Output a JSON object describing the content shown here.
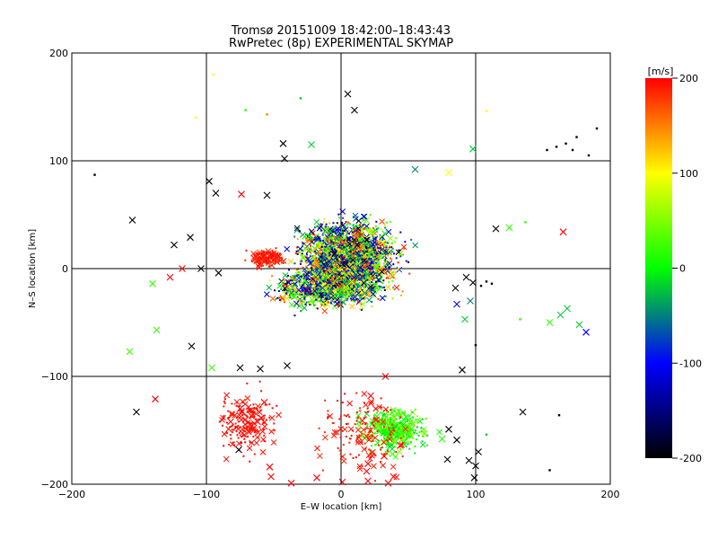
{
  "chart_data": {
    "type": "scatter",
    "title": "Tromsø 20151009 18:42:00–18:43:43",
    "subtitle": "RwPretec (8p) EXPERIMENTAL SKYMAP",
    "xlabel": "E–W location [km]",
    "ylabel": "N–S location [km]",
    "xlim": [
      -200,
      200
    ],
    "ylim": [
      -200,
      200
    ],
    "xticks": [
      -200,
      -100,
      0,
      100,
      200
    ],
    "yticks": [
      -200,
      -100,
      0,
      100,
      200
    ],
    "grid": "lines at -100, 0 and 100 on both axes",
    "colorbar": {
      "label": "[m/s]",
      "min": -200,
      "max": 200,
      "ticks": [
        200,
        100,
        0,
        -100,
        -200
      ],
      "colormap": [
        "#000000",
        "#0000ff",
        "#00ff00",
        "#ffff00",
        "#ff0000"
      ]
    },
    "markers": {
      "small": "dot",
      "large": "x"
    },
    "points": [
      {
        "x": -183,
        "y": 87,
        "v": -200,
        "m": "d"
      },
      {
        "x": -155,
        "y": 45,
        "v": -200,
        "m": "x"
      },
      {
        "x": -124,
        "y": 22,
        "v": -200,
        "m": "x"
      },
      {
        "x": -112,
        "y": 29,
        "v": -200,
        "m": "x"
      },
      {
        "x": -98,
        "y": 81,
        "v": -200,
        "m": "x"
      },
      {
        "x": -93,
        "y": 70,
        "v": -200,
        "m": "x"
      },
      {
        "x": -74,
        "y": 69,
        "v": 200,
        "m": "x"
      },
      {
        "x": -55,
        "y": 68,
        "v": -200,
        "m": "x"
      },
      {
        "x": -42,
        "y": 102,
        "v": -200,
        "m": "x"
      },
      {
        "x": -43,
        "y": 116,
        "v": -200,
        "m": "x"
      },
      {
        "x": -22,
        "y": 115,
        "v": -20,
        "m": "x"
      },
      {
        "x": 5,
        "y": 162,
        "v": -200,
        "m": "x"
      },
      {
        "x": 10,
        "y": 147,
        "v": -200,
        "m": "x"
      },
      {
        "x": 98,
        "y": 111,
        "v": -20,
        "m": "x"
      },
      {
        "x": 153,
        "y": 110,
        "v": -200,
        "m": "d"
      },
      {
        "x": 160,
        "y": 113,
        "v": -200,
        "m": "d"
      },
      {
        "x": 167,
        "y": 116,
        "v": -200,
        "m": "d"
      },
      {
        "x": 172,
        "y": 110,
        "v": -200,
        "m": "d"
      },
      {
        "x": 175,
        "y": 122,
        "v": -200,
        "m": "d"
      },
      {
        "x": 190,
        "y": 130,
        "v": -200,
        "m": "d"
      },
      {
        "x": 184,
        "y": 105,
        "v": -200,
        "m": "d"
      },
      {
        "x": -108,
        "y": 140,
        "v": 100,
        "m": "d"
      },
      {
        "x": -95,
        "y": 180,
        "v": 100,
        "m": "d"
      },
      {
        "x": -71,
        "y": 147,
        "v": 10,
        "m": "d"
      },
      {
        "x": -55,
        "y": 143,
        "v": 150,
        "m": "d"
      },
      {
        "x": -30,
        "y": 158,
        "v": -20,
        "m": "d"
      },
      {
        "x": 55,
        "y": 92,
        "v": -50,
        "m": "x"
      },
      {
        "x": 80,
        "y": 89,
        "v": 100,
        "m": "x"
      },
      {
        "x": 108,
        "y": 146,
        "v": 100,
        "m": "d"
      },
      {
        "x": 125,
        "y": 38,
        "v": 20,
        "m": "x"
      },
      {
        "x": 115,
        "y": 37,
        "v": -200,
        "m": "x"
      },
      {
        "x": 137,
        "y": 43,
        "v": 20,
        "m": "d"
      },
      {
        "x": 165,
        "y": 34,
        "v": 200,
        "m": "x"
      },
      {
        "x": -104,
        "y": 0,
        "v": -200,
        "m": "x"
      },
      {
        "x": -118,
        "y": 0,
        "v": 200,
        "m": "x"
      },
      {
        "x": -127,
        "y": -8,
        "v": 200,
        "m": "x"
      },
      {
        "x": -140,
        "y": -14,
        "v": 20,
        "m": "x"
      },
      {
        "x": -91,
        "y": -4,
        "v": -200,
        "m": "x"
      },
      {
        "x": -137,
        "y": -57,
        "v": 20,
        "m": "x"
      },
      {
        "x": -157,
        "y": -77,
        "v": 20,
        "m": "x"
      },
      {
        "x": -111,
        "y": -72,
        "v": -200,
        "m": "x"
      },
      {
        "x": -96,
        "y": -92,
        "v": 20,
        "m": "x"
      },
      {
        "x": -75,
        "y": -92,
        "v": -200,
        "m": "x"
      },
      {
        "x": -60,
        "y": -93,
        "v": -200,
        "m": "x"
      },
      {
        "x": -40,
        "y": -90,
        "v": -200,
        "m": "x"
      },
      {
        "x": -138,
        "y": -121,
        "v": 200,
        "m": "x"
      },
      {
        "x": -152,
        "y": -133,
        "v": -200,
        "m": "x"
      },
      {
        "x": 85,
        "y": -18,
        "v": -200,
        "m": "x"
      },
      {
        "x": 93,
        "y": -8,
        "v": -200,
        "m": "x"
      },
      {
        "x": 98,
        "y": -13,
        "v": -200,
        "m": "x"
      },
      {
        "x": 104,
        "y": -16,
        "v": -200,
        "m": "d"
      },
      {
        "x": 108,
        "y": -12,
        "v": -200,
        "m": "d"
      },
      {
        "x": 112,
        "y": -14,
        "v": -200,
        "m": "d"
      },
      {
        "x": 86,
        "y": -33,
        "v": -100,
        "m": "x"
      },
      {
        "x": 96,
        "y": -30,
        "v": -50,
        "m": "x"
      },
      {
        "x": 92,
        "y": -47,
        "v": -20,
        "m": "x"
      },
      {
        "x": 155,
        "y": -50,
        "v": 20,
        "m": "x"
      },
      {
        "x": 163,
        "y": -43,
        "v": -20,
        "m": "x"
      },
      {
        "x": 168,
        "y": -37,
        "v": -20,
        "m": "x"
      },
      {
        "x": 177,
        "y": -52,
        "v": -20,
        "m": "x"
      },
      {
        "x": 182,
        "y": -59,
        "v": -100,
        "m": "x"
      },
      {
        "x": 133,
        "y": -47,
        "v": 20,
        "m": "d"
      },
      {
        "x": 90,
        "y": -94,
        "v": -200,
        "m": "x"
      },
      {
        "x": 100,
        "y": -71,
        "v": -200,
        "m": "d"
      },
      {
        "x": 135,
        "y": -133,
        "v": -200,
        "m": "x"
      },
      {
        "x": 162,
        "y": -136,
        "v": -200,
        "m": "d"
      },
      {
        "x": 155,
        "y": -187,
        "v": -200,
        "m": "d"
      },
      {
        "x": 102,
        "y": -170,
        "v": -200,
        "m": "x"
      },
      {
        "x": 95,
        "y": -178,
        "v": -200,
        "m": "x"
      },
      {
        "x": 100,
        "y": -183,
        "v": -200,
        "m": "x"
      },
      {
        "x": 99,
        "y": -194,
        "v": -200,
        "m": "x"
      },
      {
        "x": 86,
        "y": -159,
        "v": -200,
        "m": "x"
      },
      {
        "x": 79,
        "y": -177,
        "v": -200,
        "m": "x"
      },
      {
        "x": 80,
        "y": -149,
        "v": -200,
        "m": "x"
      },
      {
        "x": 75,
        "y": -158,
        "v": 10,
        "m": "x"
      },
      {
        "x": 108,
        "y": -154,
        "v": -20,
        "m": "d"
      },
      {
        "x": 44,
        "y": -164,
        "v": 200,
        "m": "x"
      },
      {
        "x": 32,
        "y": -174,
        "v": 200,
        "m": "x"
      },
      {
        "x": 20,
        "y": -181,
        "v": 200,
        "m": "x"
      },
      {
        "x": 19,
        "y": -188,
        "v": 200,
        "m": "x"
      },
      {
        "x": 20,
        "y": -197,
        "v": 200,
        "m": "x"
      },
      {
        "x": 35,
        "y": -199,
        "v": 200,
        "m": "x"
      },
      {
        "x": 39,
        "y": -193,
        "v": 200,
        "m": "x"
      },
      {
        "x": 33,
        "y": -100,
        "v": 200,
        "m": "x"
      },
      {
        "x": 22,
        "y": -118,
        "v": 200,
        "m": "x"
      },
      {
        "x": 1,
        "y": -198,
        "v": 200,
        "m": "x"
      },
      {
        "x": -57,
        "y": -124,
        "v": 200,
        "m": "x"
      },
      {
        "x": -62,
        "y": -142,
        "v": 200,
        "m": "x"
      },
      {
        "x": -82,
        "y": -142,
        "v": 200,
        "m": "x"
      },
      {
        "x": -75,
        "y": -130,
        "v": 200,
        "m": "x"
      },
      {
        "x": -76,
        "y": -168,
        "v": -200,
        "m": "x"
      },
      {
        "x": -53,
        "y": -184,
        "v": 200,
        "m": "x"
      },
      {
        "x": -52,
        "y": -193,
        "v": 200,
        "m": "x"
      },
      {
        "x": -37,
        "y": -199,
        "v": 200,
        "m": "x"
      },
      {
        "x": -18,
        "y": -194,
        "v": 200,
        "m": "x"
      }
    ]
  }
}
